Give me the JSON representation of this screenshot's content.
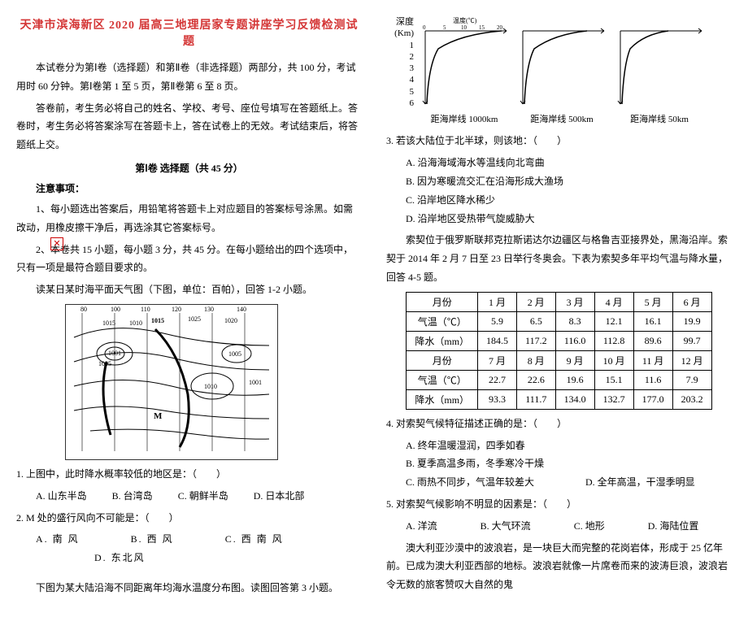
{
  "title": "天津市滨海新区 2020 届高三地理居家专题讲座学习反馈检测试题",
  "intro1": "本试卷分为第Ⅰ卷（选择题）和第Ⅱ卷（非选择题）两部分，共 100 分，考试用时 60 分钟。第Ⅰ卷第 1 至 5 页，第Ⅱ卷第 6 至 8 页。",
  "intro2": "答卷前，考生务必将自己的姓名、学校、考号、座位号填写在答题纸上。答卷时，考生务必将答案涂写在答题卡上，答在试卷上的无效。考试结束后，将答题纸上交。",
  "part1_header": "第Ⅰ卷 选择题（共 45 分）",
  "notice_label": "注意事项：",
  "notice1": "1、每小题选出答案后，用铅笔将答题卡上对应题目的答案标号涂黑。如需改动，用橡皮擦干净后，再选涂其它答案标号。",
  "notice2": "2、本卷共 15 小题，每小题 3 分，共 45 分。在每小题给出的四个选项中，只有一项是最符合题目要求的。",
  "stem12": "读某日某时海平面天气图（下图，单位：百帕），回答 1-2 小题。",
  "q1": {
    "text": "1. 上图中，此时降水概率较低的地区是：（　　）",
    "opts": [
      "A. 山东半岛",
      "B. 台湾岛",
      "C. 朝鲜半岛",
      "D. 日本北部"
    ]
  },
  "q2": {
    "text": "2. M 处的盛行风向不可能是：（　　）",
    "opts": [
      "A. 南 风",
      "B. 西 风",
      "C. 西 南 风",
      "D. 东北风"
    ]
  },
  "stem3": "下图为某大陆沿海不同距离年均海水温度分布图。读图回答第 3 小题。",
  "depth_axis_label": "深度(Km)",
  "depth_ticks": [
    "1",
    "2",
    "3",
    "4",
    "5",
    "6"
  ],
  "temp_label": "温度(℃)",
  "temp_ticks": [
    "0",
    "5",
    "10",
    "15",
    "20"
  ],
  "depth_captions": [
    "距海岸线 1000km",
    "距海岸线 500km",
    "距海岸线 50km"
  ],
  "q3": {
    "text": "3. 若该大陆位于北半球，则该地：（　　）",
    "opts": [
      "A. 沿海海域海水等温线向北弯曲",
      "B. 因为寒暖流交汇在沿海形成大渔场",
      "C. 沿岸地区降水稀少",
      "D. 沿岸地区受热带气旋威胁大"
    ]
  },
  "stem45": "索契位于俄罗斯联邦克拉斯诺达尔边疆区与格鲁吉亚接界处，黑海沿岸。索契于 2014 年 2 月 7 日至 23 日举行冬奥会。下表为索契多年平均气温与降水量，回答 4-5 题。",
  "table": {
    "rows": [
      [
        "月份",
        "1 月",
        "2 月",
        "3 月",
        "4 月",
        "5 月",
        "6 月"
      ],
      [
        "气温（℃）",
        "5.9",
        "6.5",
        "8.3",
        "12.1",
        "16.1",
        "19.9"
      ],
      [
        "降水（mm）",
        "184.5",
        "117.2",
        "116.0",
        "112.8",
        "89.6",
        "99.7"
      ],
      [
        "月份",
        "7 月",
        "8 月",
        "9 月",
        "10 月",
        "11 月",
        "12 月"
      ],
      [
        "气温（℃）",
        "22.7",
        "22.6",
        "19.6",
        "15.1",
        "11.6",
        "7.9"
      ],
      [
        "降水（mm）",
        "93.3",
        "111.7",
        "134.0",
        "132.7",
        "177.0",
        "203.2"
      ]
    ]
  },
  "q4": {
    "text": "4. 对索契气候特征描述正确的是：（　　）",
    "opts": [
      "A. 终年温暖湿润，四季如春",
      "B. 夏季高温多雨，冬季寒冷干燥",
      "C. 雨热不同步，气温年较差大",
      "D. 全年高温，干湿季明显"
    ]
  },
  "q5": {
    "text": "5. 对索契气候影响不明显的因素是：（　　）",
    "opts": [
      "A. 洋流",
      "B. 大气环流",
      "C. 地形",
      "D. 海陆位置"
    ]
  },
  "trailing": "澳大利亚沙漠中的波浪岩，是一块巨大而完整的花岗岩体，形成于 25 亿年前。已成为澳大利亚西部的地标。波浪岩就像一片席卷而来的波涛巨浪，波浪岩令无数的旅客赞叹大自然的鬼",
  "fig1_labels": {
    "lons": [
      "80",
      "100",
      "110",
      "120",
      "130",
      "140"
    ],
    "isobars": [
      "1015",
      "1010",
      "1015",
      "1025",
      "1020",
      "1005",
      "1001",
      "1010",
      "1005",
      "1001"
    ],
    "marker": "M"
  }
}
